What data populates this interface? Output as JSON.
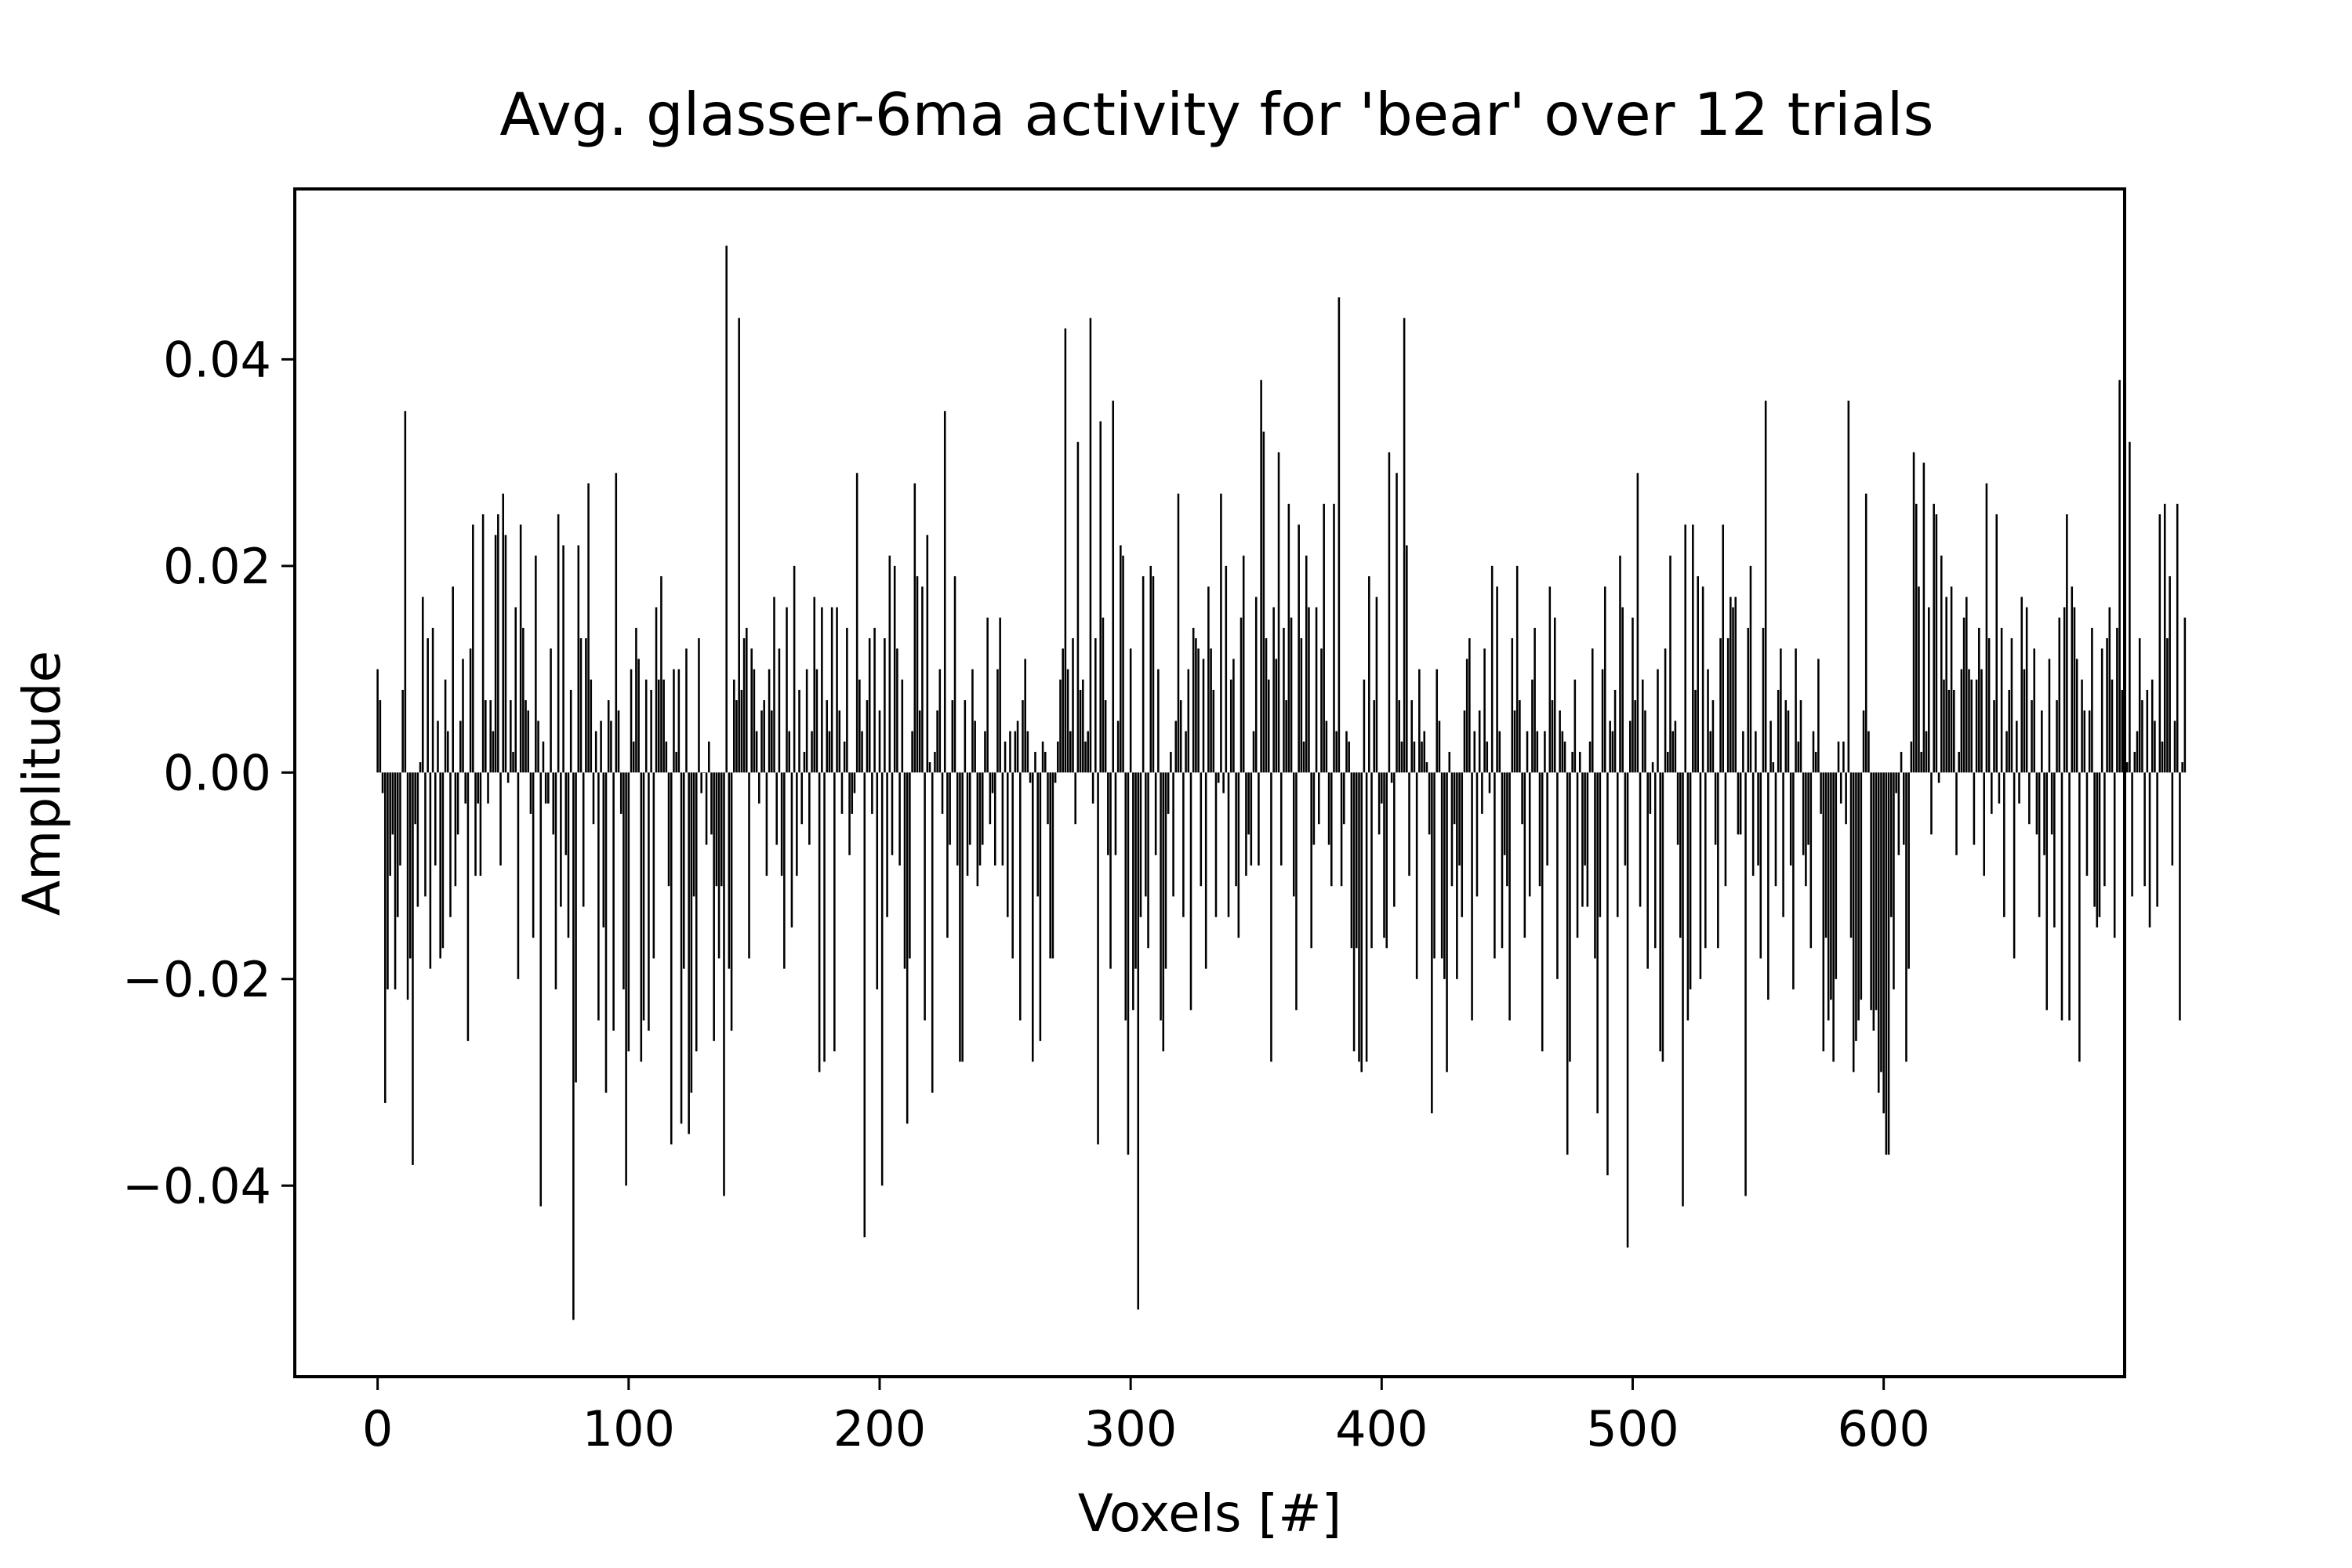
{
  "chart_data": {
    "type": "bar",
    "title": "Avg. glasser-6ma activity for 'bear' over 12 trials",
    "xlabel": "Voxels [#]",
    "ylabel": "Amplitude",
    "xlim": [
      -33,
      696
    ],
    "ylim": [
      -0.0585,
      0.0565
    ],
    "xticks": [
      0,
      100,
      200,
      300,
      400,
      500,
      600
    ],
    "xtick_labels": [
      "0",
      "100",
      "200",
      "300",
      "400",
      "500",
      "600"
    ],
    "yticks": [
      -0.04,
      -0.02,
      0.0,
      0.02,
      0.04
    ],
    "ytick_labels": [
      "−0.04",
      "−0.02",
      "0.00",
      "0.02",
      "0.04"
    ],
    "grid": false,
    "legend": "none",
    "bar_color": "#000000",
    "bar_width": 0.8,
    "x_start": 0,
    "x_step": 1,
    "values": [
      0.01,
      0.007,
      -0.002,
      -0.032,
      -0.021,
      -0.01,
      -0.006,
      -0.021,
      -0.014,
      -0.009,
      0.008,
      0.035,
      -0.022,
      -0.018,
      -0.038,
      -0.005,
      -0.013,
      0.001,
      0.017,
      -0.012,
      0.013,
      -0.019,
      0.014,
      -0.009,
      0.005,
      -0.018,
      -0.017,
      0.009,
      0.004,
      -0.014,
      0.018,
      -0.011,
      -0.006,
      0.005,
      0.011,
      -0.003,
      -0.026,
      0.012,
      0.024,
      -0.01,
      -0.003,
      -0.01,
      0.025,
      0.007,
      -0.003,
      0.007,
      0.004,
      0.023,
      0.025,
      -0.009,
      0.027,
      0.023,
      -0.001,
      0.007,
      0.002,
      0.016,
      -0.02,
      0.024,
      0.014,
      0.007,
      0.006,
      -0.004,
      -0.016,
      0.021,
      0.005,
      -0.042,
      0.003,
      -0.003,
      -0.003,
      0.012,
      -0.006,
      -0.021,
      0.025,
      -0.013,
      0.022,
      -0.008,
      -0.016,
      0.008,
      -0.053,
      -0.03,
      0.022,
      0.013,
      -0.013,
      0.013,
      0.028,
      0.009,
      -0.005,
      0.004,
      -0.024,
      0.005,
      -0.015,
      -0.031,
      0.007,
      0.005,
      -0.025,
      0.029,
      0.006,
      -0.004,
      -0.021,
      -0.04,
      -0.027,
      0.01,
      0.003,
      0.014,
      0.011,
      -0.028,
      -0.024,
      0.009,
      -0.025,
      0.008,
      -0.018,
      0.016,
      0.009,
      0.019,
      0.009,
      0.003,
      -0.011,
      -0.036,
      0.01,
      0.002,
      0.01,
      -0.034,
      -0.019,
      0.012,
      -0.035,
      -0.031,
      -0.012,
      -0.027,
      0.013,
      -0.002,
      0.0,
      -0.007,
      0.003,
      -0.006,
      -0.026,
      -0.011,
      -0.018,
      -0.011,
      -0.041,
      0.051,
      -0.019,
      -0.025,
      0.009,
      0.007,
      0.044,
      0.008,
      0.013,
      0.014,
      -0.018,
      0.012,
      0.01,
      0.004,
      -0.003,
      0.006,
      0.007,
      -0.01,
      0.01,
      0.006,
      0.017,
      -0.007,
      0.012,
      -0.01,
      -0.019,
      0.016,
      0.004,
      -0.015,
      0.02,
      -0.01,
      0.008,
      -0.005,
      0.002,
      0.01,
      -0.007,
      0.004,
      0.017,
      0.01,
      -0.029,
      0.016,
      -0.028,
      0.007,
      0.004,
      0.016,
      -0.027,
      0.016,
      0.006,
      -0.004,
      0.003,
      0.014,
      -0.008,
      -0.004,
      -0.002,
      0.029,
      0.009,
      0.004,
      -0.045,
      0.007,
      0.013,
      -0.004,
      0.014,
      -0.021,
      0.006,
      -0.04,
      0.013,
      -0.014,
      0.021,
      -0.008,
      0.02,
      0.012,
      -0.009,
      0.009,
      -0.019,
      -0.034,
      -0.018,
      0.004,
      0.028,
      0.019,
      0.006,
      0.018,
      -0.024,
      0.023,
      0.001,
      -0.031,
      0.002,
      0.006,
      0.01,
      -0.004,
      0.035,
      -0.016,
      -0.007,
      0.007,
      0.019,
      -0.009,
      -0.028,
      -0.028,
      0.007,
      -0.01,
      -0.007,
      0.01,
      0.005,
      -0.011,
      -0.009,
      -0.007,
      0.004,
      0.015,
      -0.005,
      -0.002,
      -0.009,
      0.01,
      0.015,
      -0.009,
      0.003,
      -0.014,
      0.004,
      -0.018,
      0.004,
      0.005,
      -0.024,
      0.007,
      0.011,
      0.004,
      -0.001,
      -0.028,
      0.002,
      -0.012,
      -0.026,
      0.003,
      0.002,
      -0.005,
      -0.018,
      -0.018,
      -0.001,
      0.003,
      0.009,
      0.012,
      0.043,
      0.01,
      0.004,
      0.013,
      -0.005,
      0.032,
      0.008,
      0.009,
      0.003,
      0.004,
      0.044,
      -0.003,
      0.013,
      -0.036,
      0.034,
      0.015,
      0.007,
      -0.008,
      -0.019,
      0.036,
      -0.008,
      0.005,
      0.022,
      0.021,
      -0.024,
      -0.037,
      0.012,
      -0.023,
      -0.019,
      -0.052,
      -0.014,
      0.019,
      -0.012,
      -0.017,
      0.02,
      0.019,
      -0.008,
      0.01,
      -0.024,
      -0.027,
      -0.019,
      -0.004,
      0.002,
      -0.012,
      0.005,
      0.027,
      0.007,
      -0.014,
      0.004,
      0.01,
      -0.023,
      0.014,
      0.013,
      0.012,
      -0.011,
      0.011,
      -0.019,
      0.018,
      0.012,
      0.008,
      -0.014,
      -0.001,
      0.027,
      -0.002,
      0.02,
      -0.014,
      0.009,
      0.011,
      -0.011,
      -0.016,
      0.015,
      0.021,
      -0.01,
      -0.006,
      -0.009,
      0.004,
      0.017,
      -0.009,
      0.038,
      0.033,
      0.013,
      0.009,
      -0.028,
      0.016,
      0.011,
      0.031,
      -0.009,
      0.014,
      0.007,
      0.026,
      0.015,
      -0.012,
      -0.023,
      0.024,
      0.013,
      0.003,
      0.021,
      0.016,
      -0.017,
      -0.007,
      0.016,
      -0.005,
      0.012,
      0.026,
      0.005,
      -0.007,
      -0.011,
      0.026,
      0.004,
      0.046,
      -0.011,
      -0.005,
      0.004,
      0.003,
      -0.017,
      -0.027,
      -0.017,
      -0.028,
      -0.029,
      0.009,
      -0.028,
      0.019,
      -0.017,
      0.007,
      0.017,
      -0.006,
      -0.003,
      -0.016,
      -0.017,
      0.031,
      -0.001,
      -0.013,
      0.029,
      0.007,
      0.003,
      0.044,
      0.022,
      -0.01,
      0.007,
      0.003,
      -0.02,
      0.01,
      0.003,
      0.004,
      0.001,
      -0.006,
      -0.033,
      -0.018,
      0.01,
      0.005,
      -0.018,
      -0.02,
      -0.029,
      0.002,
      -0.011,
      -0.005,
      -0.02,
      -0.009,
      -0.014,
      0.006,
      0.011,
      0.013,
      -0.024,
      0.004,
      -0.012,
      0.006,
      -0.004,
      0.012,
      0.003,
      -0.002,
      0.02,
      -0.018,
      0.018,
      0.004,
      -0.017,
      -0.008,
      -0.011,
      -0.024,
      0.013,
      0.006,
      0.02,
      0.007,
      -0.005,
      -0.016,
      0.004,
      -0.012,
      0.009,
      0.014,
      0.004,
      -0.011,
      -0.027,
      0.004,
      -0.009,
      0.018,
      0.007,
      0.015,
      -0.02,
      0.006,
      0.004,
      0.003,
      -0.037,
      -0.028,
      0.002,
      0.009,
      -0.016,
      0.002,
      -0.013,
      -0.009,
      -0.013,
      0.003,
      0.012,
      -0.018,
      -0.033,
      -0.014,
      0.01,
      0.018,
      -0.039,
      0.005,
      0.004,
      0.008,
      -0.014,
      0.021,
      0.016,
      -0.009,
      -0.046,
      0.005,
      0.015,
      0.007,
      0.029,
      -0.013,
      0.009,
      0.006,
      -0.019,
      -0.004,
      0.001,
      -0.017,
      0.01,
      -0.027,
      -0.028,
      0.012,
      0.002,
      0.021,
      0.004,
      0.005,
      -0.007,
      -0.016,
      -0.042,
      0.024,
      -0.024,
      -0.021,
      0.024,
      0.008,
      0.019,
      -0.02,
      0.018,
      -0.017,
      0.01,
      0.004,
      0.007,
      -0.007,
      -0.017,
      0.013,
      0.024,
      -0.011,
      0.013,
      0.017,
      0.016,
      0.017,
      -0.006,
      -0.006,
      0.004,
      -0.041,
      0.014,
      0.02,
      -0.01,
      0.004,
      -0.009,
      -0.018,
      0.014,
      0.036,
      -0.022,
      0.005,
      0.001,
      -0.011,
      0.008,
      0.012,
      -0.014,
      0.007,
      0.006,
      -0.009,
      -0.021,
      0.012,
      0.003,
      0.007,
      -0.008,
      -0.011,
      -0.007,
      -0.017,
      0.004,
      0.002,
      0.011,
      -0.004,
      -0.027,
      -0.016,
      -0.024,
      -0.022,
      -0.028,
      -0.02,
      0.003,
      -0.003,
      0.003,
      -0.005,
      0.036,
      -0.016,
      -0.029,
      -0.026,
      -0.024,
      -0.022,
      0.006,
      0.027,
      0.004,
      -0.023,
      -0.025,
      -0.023,
      -0.031,
      -0.029,
      -0.033,
      -0.037,
      -0.037,
      -0.014,
      -0.021,
      -0.002,
      -0.008,
      0.002,
      -0.007,
      -0.028,
      -0.019,
      0.003,
      0.031,
      0.026,
      0.018,
      0.002,
      0.03,
      0.004,
      0.016,
      -0.006,
      0.026,
      0.025,
      -0.001,
      0.021,
      0.009,
      0.017,
      0.008,
      0.018,
      0.008,
      -0.008,
      0.002,
      0.01,
      0.015,
      0.017,
      0.01,
      0.009,
      -0.007,
      0.009,
      0.014,
      0.01,
      -0.01,
      0.028,
      0.013,
      -0.004,
      0.007,
      0.025,
      -0.003,
      0.014,
      -0.014,
      0.004,
      0.008,
      0.013,
      -0.018,
      0.005,
      -0.003,
      0.017,
      0.01,
      0.016,
      -0.005,
      0.007,
      0.012,
      -0.006,
      -0.014,
      0.006,
      -0.008,
      -0.023,
      0.011,
      -0.006,
      -0.015,
      0.007,
      0.015,
      -0.024,
      0.016,
      0.025,
      -0.024,
      0.018,
      0.016,
      0.011,
      -0.028,
      0.009,
      0.006,
      -0.01,
      0.006,
      0.014,
      -0.013,
      -0.015,
      -0.014,
      0.012,
      -0.011,
      0.013,
      0.016,
      0.009,
      -0.016,
      0.014,
      0.038,
      0.008,
      -0.015,
      0.001,
      0.032,
      -0.012,
      0.002,
      0.004,
      0.013,
      0.007,
      -0.011,
      0.008,
      -0.015,
      0.009,
      0.005,
      -0.013,
      0.025,
      0.003,
      0.026,
      0.013,
      0.019,
      -0.009,
      0.005,
      0.026,
      -0.024,
      0.001,
      0.015
    ]
  }
}
